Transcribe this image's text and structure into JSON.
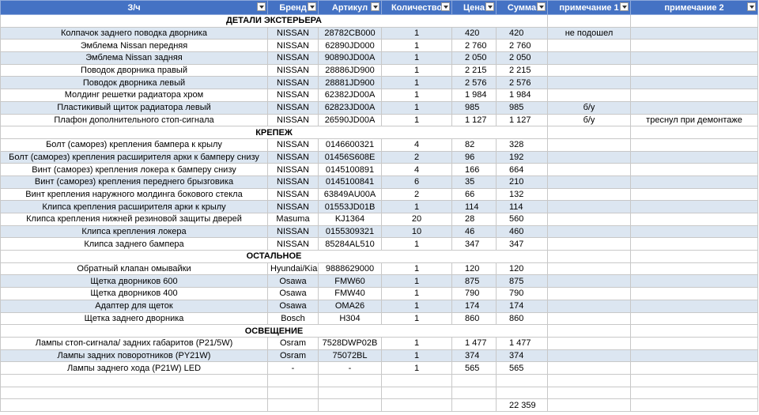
{
  "header": {
    "columns": [
      "З/ч",
      "Бренд",
      "Артикул",
      "Количество",
      "Цена",
      "Сумма",
      "примечание 1",
      "примечание 2"
    ]
  },
  "sections": [
    {
      "title": "ДЕТАЛИ ЭКСТЕРЬЕРА",
      "rows": [
        {
          "name": "Колпачок заднего поводка дворника",
          "brand": "NISSAN",
          "article": "28782CB000",
          "qty": "1",
          "price": "420",
          "sum": "420",
          "note1": "не подошел"
        },
        {
          "name": "Эмблема Nissan передняя",
          "brand": "NISSAN",
          "article": "62890JD000",
          "qty": "1",
          "price": "2 760",
          "sum": "2 760"
        },
        {
          "name": "Эмблема Nissan задняя",
          "brand": "NISSAN",
          "article": "90890JD00A",
          "qty": "1",
          "price": "2 050",
          "sum": "2 050"
        },
        {
          "name": "Поводок дворника правый",
          "brand": "NISSAN",
          "article": "28886JD900",
          "qty": "1",
          "price": "2 215",
          "sum": "2 215"
        },
        {
          "name": "Поводок дворника левый",
          "brand": "NISSAN",
          "article": "28881JD900",
          "qty": "1",
          "price": "2 576",
          "sum": "2 576"
        },
        {
          "name": "Молдинг решетки радиатора хром",
          "brand": "NISSAN",
          "article": "62382JD00A",
          "qty": "1",
          "price": "1 984",
          "sum": "1 984"
        },
        {
          "name": "Пластикивый щиток радиатора левый",
          "brand": "NISSAN",
          "article": "62823JD00A",
          "qty": "1",
          "price": "985",
          "sum": "985",
          "note1": "б/у"
        },
        {
          "name": "Плафон дополнительного стоп-сигнала",
          "brand": "NISSAN",
          "article": "26590JD00A",
          "qty": "1",
          "price": "1 127",
          "sum": "1 127",
          "note1": "б/у",
          "note2": "треснул при демонтаже"
        }
      ]
    },
    {
      "title": "КРЕПЕЖ",
      "rows": [
        {
          "name": "Болт (саморез) крепления бампера к крылу",
          "brand": "NISSAN",
          "article": "0146600321",
          "qty": "4",
          "price": "82",
          "sum": "328"
        },
        {
          "name": "Болт (саморез) крепления расширителя арки к бамперу снизу",
          "brand": "NISSAN",
          "article": "01456S608E",
          "qty": "2",
          "price": "96",
          "sum": "192"
        },
        {
          "name": "Винт (саморез) крепления локера к бамперу снизу",
          "brand": "NISSAN",
          "article": "0145100891",
          "qty": "4",
          "price": "166",
          "sum": "664"
        },
        {
          "name": "Винт (саморез) крепления переднего брызговика",
          "brand": "NISSAN",
          "article": "0145100841",
          "qty": "6",
          "price": "35",
          "sum": "210"
        },
        {
          "name": "Винт крепления наружного молдинга бокового стекла",
          "brand": "NISSAN",
          "article": "63849AU00A",
          "qty": "2",
          "price": "66",
          "sum": "132"
        },
        {
          "name": "Клипса крепления расширителя арки к крылу",
          "brand": "NISSAN",
          "article": "01553JD01B",
          "qty": "1",
          "price": "114",
          "sum": "114"
        },
        {
          "name": "Клипса крепления нижней резиновой защиты дверей",
          "brand": "Masuma",
          "article": "KJ1364",
          "qty": "20",
          "price": "28",
          "sum": "560"
        },
        {
          "name": "Клипса крепления локера",
          "brand": "NISSAN",
          "article": "0155309321",
          "qty": "10",
          "price": "46",
          "sum": "460"
        },
        {
          "name": "Клипса заднего бампера",
          "brand": "NISSAN",
          "article": "85284AL510",
          "qty": "1",
          "price": "347",
          "sum": "347"
        }
      ]
    },
    {
      "title": "ОСТАЛЬНОЕ",
      "rows": [
        {
          "name": "Обратный клапан омывайки",
          "brand": "Hyundai/Kia",
          "article": "9888629000",
          "qty": "1",
          "price": "120",
          "sum": "120"
        },
        {
          "name": "Щетка дворников 600",
          "brand": "Osawa",
          "article": "FMW60",
          "qty": "1",
          "price": "875",
          "sum": "875"
        },
        {
          "name": "Щетка дворников 400",
          "brand": "Osawa",
          "article": "FMW40",
          "qty": "1",
          "price": "790",
          "sum": "790"
        },
        {
          "name": "Адаптер для щеток",
          "brand": "Osawa",
          "article": "OMA26",
          "qty": "1",
          "price": "174",
          "sum": "174"
        },
        {
          "name": "Щетка заднего дворника",
          "brand": "Bosch",
          "article": "H304",
          "qty": "1",
          "price": "860",
          "sum": "860"
        }
      ]
    },
    {
      "title": "ОСВЕЩЕНИЕ",
      "rows": [
        {
          "name": "Лампы стоп-сигнала/ задних габаритов (P21/5W)",
          "brand": "Osram",
          "article": "7528DWP02B",
          "qty": "1",
          "price": "1 477",
          "sum": "1 477"
        },
        {
          "name": "Лампы задних поворотников (PY21W)",
          "brand": "Osram",
          "article": "75072BL",
          "qty": "1",
          "price": "374",
          "sum": "374"
        },
        {
          "name": "Лампы заднего хода (P21W) LED",
          "brand": "-",
          "article": "-",
          "qty": "1",
          "price": "565",
          "sum": "565"
        }
      ]
    }
  ],
  "total": "22 359"
}
